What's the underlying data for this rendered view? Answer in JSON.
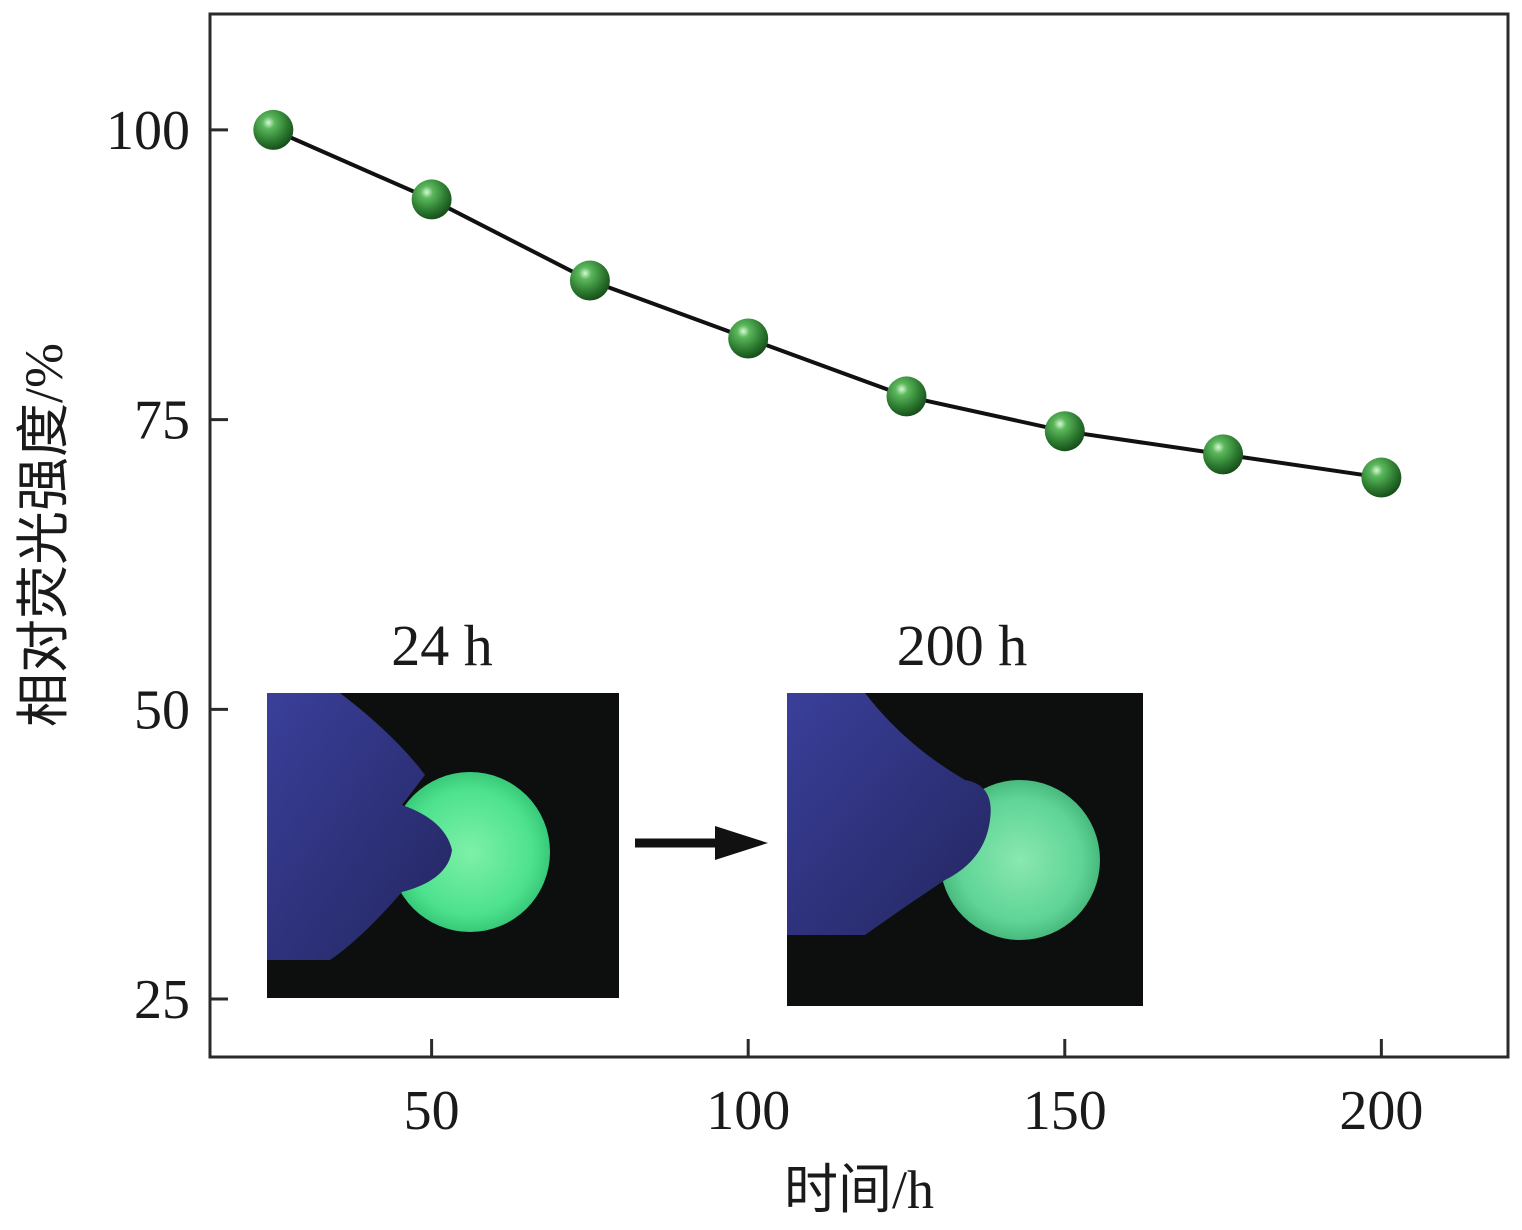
{
  "chart_data": {
    "type": "line",
    "xlabel": "时间/h",
    "ylabel": "相对荧光强度/%",
    "xlim": [
      15,
      220
    ],
    "ylim": [
      20,
      110
    ],
    "xticks": [
      50,
      100,
      150,
      200
    ],
    "yticks": [
      25,
      50,
      75,
      100
    ],
    "grid": false,
    "series": [
      {
        "x": [
          25,
          50,
          75,
          100,
          125,
          150,
          175,
          200
        ],
        "y": [
          100,
          94,
          87,
          82,
          77,
          74,
          72,
          70
        ]
      }
    ],
    "colors": {
      "marker": "#2e7d32",
      "line": "#111111",
      "glow": "#3fd98a",
      "glove": "#2c2f7a"
    }
  },
  "insets": [
    {
      "label": "24 h"
    },
    {
      "label": "200 h"
    }
  ]
}
